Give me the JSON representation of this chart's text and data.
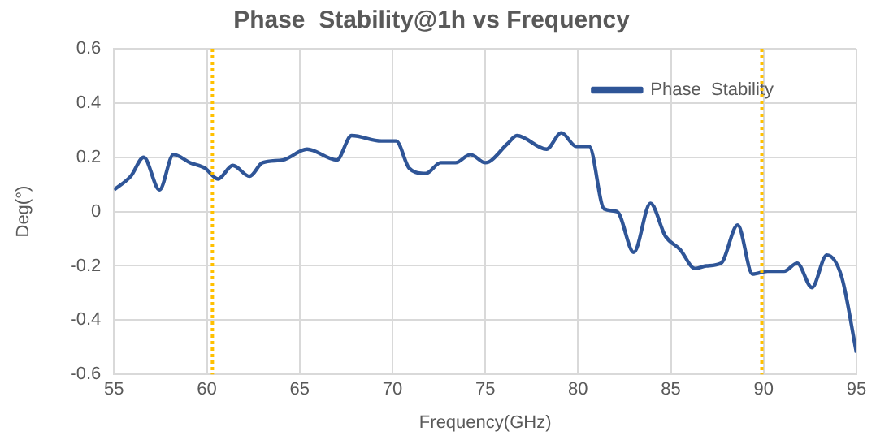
{
  "chart_data": {
    "type": "line",
    "title": "Phase  Stability@1h vs Frequency",
    "xlabel": "Frequency(GHz)",
    "ylabel": "Deg(°)",
    "xlim": [
      55,
      95
    ],
    "xticks": [
      55,
      60,
      65,
      70,
      75,
      80,
      85,
      90,
      95
    ],
    "ylim": [
      -0.6,
      0.6
    ],
    "yticks": [
      -0.6,
      -0.4,
      -0.2,
      0,
      0.2,
      0.4,
      0.6
    ],
    "grid": true,
    "legend": "top right",
    "marker": "none",
    "line_style": "solid",
    "ref_lines": [
      {
        "axis": "x",
        "value": 60.3,
        "color": "#ffc000",
        "line_style": "dotted"
      },
      {
        "axis": "x",
        "value": 89.9,
        "color": "#ffc000",
        "line_style": "dotted"
      }
    ],
    "series": [
      {
        "name": "Phase  Stability",
        "color": "#2f5597",
        "x": [
          55,
          55.9,
          56.6,
          57.45,
          58.2,
          59.1,
          59.9,
          60.6,
          61.4,
          62.3,
          63,
          64.1,
          65.4,
          67,
          67.8,
          69.4,
          70.2,
          70.9,
          71.8,
          72.6,
          73.4,
          74.2,
          75,
          76.2,
          76.7,
          78.3,
          79.1,
          79.9,
          80.6,
          81.4,
          82.1,
          83,
          83.9,
          84.7,
          85.5,
          86.3,
          86.9,
          87.7,
          88.6,
          89.4,
          90.2,
          91.1,
          91.8,
          92.6,
          93.4,
          94.2,
          95
        ],
        "values": [
          0.08,
          0.13,
          0.2,
          0.08,
          0.21,
          0.18,
          0.16,
          0.12,
          0.17,
          0.13,
          0.18,
          0.19,
          0.23,
          0.19,
          0.28,
          0.26,
          0.26,
          0.16,
          0.14,
          0.18,
          0.18,
          0.21,
          0.18,
          0.25,
          0.28,
          0.23,
          0.29,
          0.24,
          0.24,
          0.01,
          0,
          -0.15,
          0.03,
          -0.09,
          -0.14,
          -0.21,
          -0.2,
          -0.19,
          -0.05,
          -0.23,
          -0.22,
          -0.22,
          -0.19,
          -0.28,
          -0.16,
          -0.24,
          -0.52
        ]
      }
    ]
  }
}
